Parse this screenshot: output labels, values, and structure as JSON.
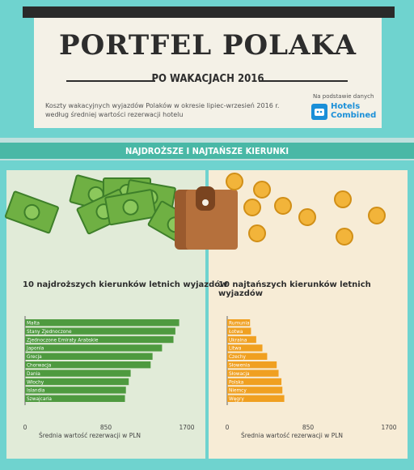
{
  "header": {
    "title": "PORTFEL POLAKA",
    "subtitle": "PO WAKACJACH 2016",
    "description_line1": "Koszty wakacyjnych wyjazdów Polaków w okresie lipiec-wrzesień 2016 r.",
    "description_line2": "według średniej wartości rezerwacji hotelu",
    "source_label": "Na podstawie danych",
    "logo_line1": "Hotels",
    "logo_line2": "Combined"
  },
  "section": {
    "title": "NAJDROŻSZE I NAJTAŃSZE KIERUNKI"
  },
  "colors": {
    "accent": "#49b8a6",
    "left_bar": "#4e9a3f",
    "right_bar": "#f0a021"
  },
  "chart_data": [
    {
      "type": "bar",
      "orientation": "horizontal",
      "title": "10 najdroższych kierunków letnich wyjazdów",
      "xlabel": "Średnia wartość rezerwacji w PLN",
      "xlim": [
        0,
        1700
      ],
      "xticks": [
        0,
        850,
        1700
      ],
      "categories": [
        "Malta",
        "Stany Zjednoczone",
        "Zjednoczone Emiraty Arabskie",
        "Japonia",
        "Grecja",
        "Chorwacja",
        "Dania",
        "Włochy",
        "Islandia",
        "Szwajcaria"
      ],
      "values": [
        1620,
        1580,
        1560,
        1440,
        1340,
        1320,
        1110,
        1090,
        1060,
        1050
      ]
    },
    {
      "type": "bar",
      "orientation": "horizontal",
      "title": "10 najtańszych kierunków letnich wyjazdów",
      "xlabel": "Średnia wartość rezerwacji w PLN",
      "xlim": [
        0,
        1700
      ],
      "xticks": [
        0,
        850,
        1700
      ],
      "categories": [
        "Rumunia",
        "Łotwa",
        "Ukraina",
        "Litwa",
        "Czechy",
        "Słowenia",
        "Słowacja",
        "Polska",
        "Niemcy",
        "Węgry"
      ],
      "values": [
        240,
        250,
        305,
        370,
        420,
        520,
        540,
        570,
        580,
        600
      ]
    }
  ]
}
